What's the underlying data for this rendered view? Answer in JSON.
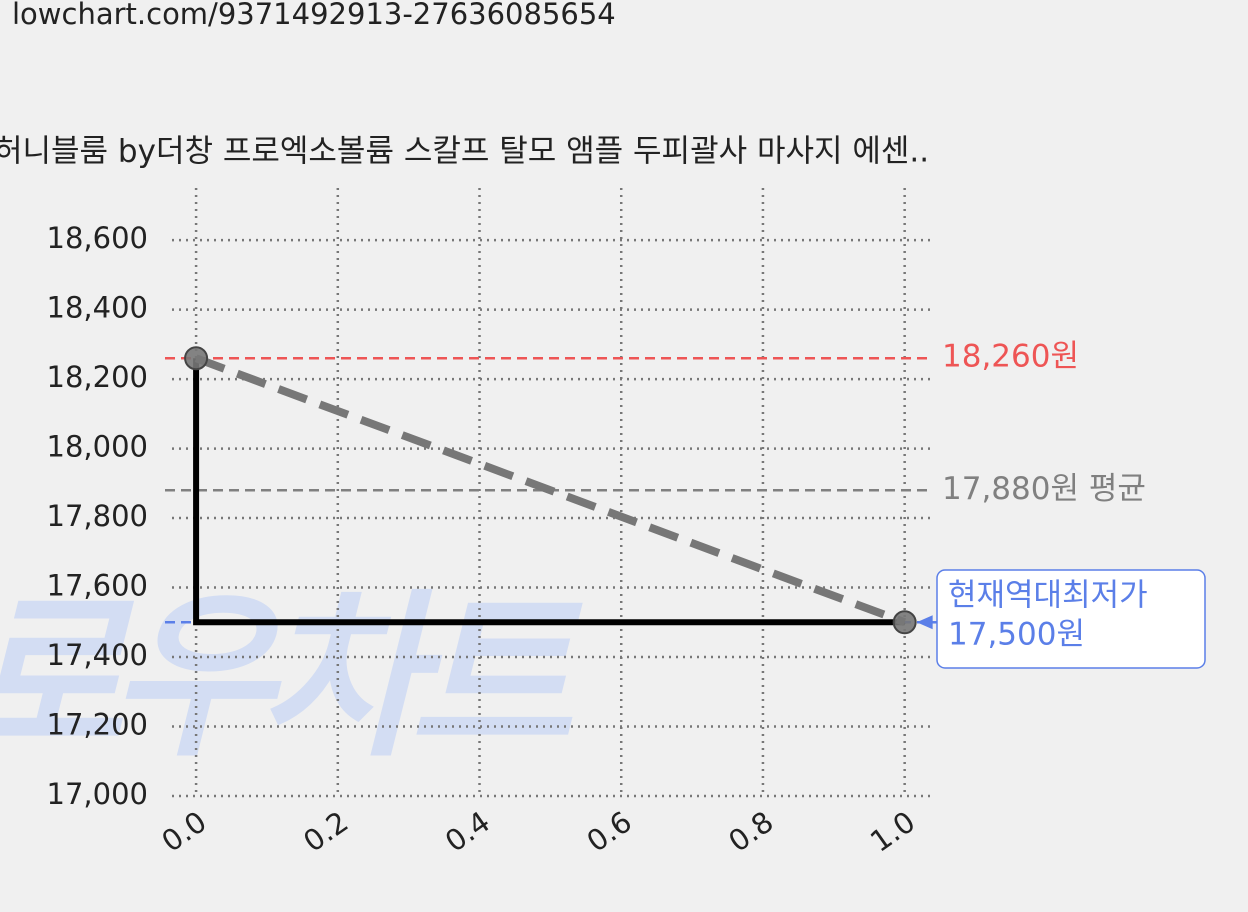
{
  "url": "lowchart.com/9371492913-27636085654",
  "chart_data": {
    "type": "line",
    "title": "허니블룸 by더창 프로엑소볼륨 스칼프 탈모 앰플 두피괄사 마사지 에센..",
    "watermark": "로우차트",
    "x": [
      0,
      1
    ],
    "series": [
      {
        "values": [
          18260,
          17500
        ],
        "color": "#000000",
        "drawstyle": "steps-pre",
        "linestyle": "solid"
      },
      {
        "values": [
          18260,
          17500
        ],
        "color": "#777777",
        "drawstyle": "default",
        "linestyle": "dashed",
        "marker": true
      }
    ],
    "hlines": [
      {
        "value": 18260,
        "label": "18,260원",
        "color": "#ee5555"
      },
      {
        "value": 17880,
        "label": "17,880원 평균",
        "color": "#808080"
      },
      {
        "value": 17500,
        "color": "#5b7fe8"
      }
    ],
    "annotation": {
      "x": 1,
      "y": 17500,
      "lines": [
        "현재역대최저가",
        "17,500원"
      ],
      "color": "#5b7fe8"
    },
    "xlim": [
      -0.034,
      1.04
    ],
    "ylim": [
      17000,
      18750
    ],
    "xticks": [
      {
        "value": 0,
        "label": "0.0"
      },
      {
        "value": 0.2,
        "label": "0.2"
      },
      {
        "value": 0.4,
        "label": "0.4"
      },
      {
        "value": 0.6,
        "label": "0.6"
      },
      {
        "value": 0.8,
        "label": "0.8"
      },
      {
        "value": 1,
        "label": "1.0"
      }
    ],
    "yticks": [
      {
        "value": 17000,
        "label": "17,000"
      },
      {
        "value": 17200,
        "label": "17,200"
      },
      {
        "value": 17400,
        "label": "17,400"
      },
      {
        "value": 17600,
        "label": "17,600"
      },
      {
        "value": 17800,
        "label": "17,800"
      },
      {
        "value": 18000,
        "label": "18,000"
      },
      {
        "value": 18200,
        "label": "18,200"
      },
      {
        "value": 18400,
        "label": "18,400"
      },
      {
        "value": 18600,
        "label": "18,600"
      }
    ],
    "grid": true
  }
}
